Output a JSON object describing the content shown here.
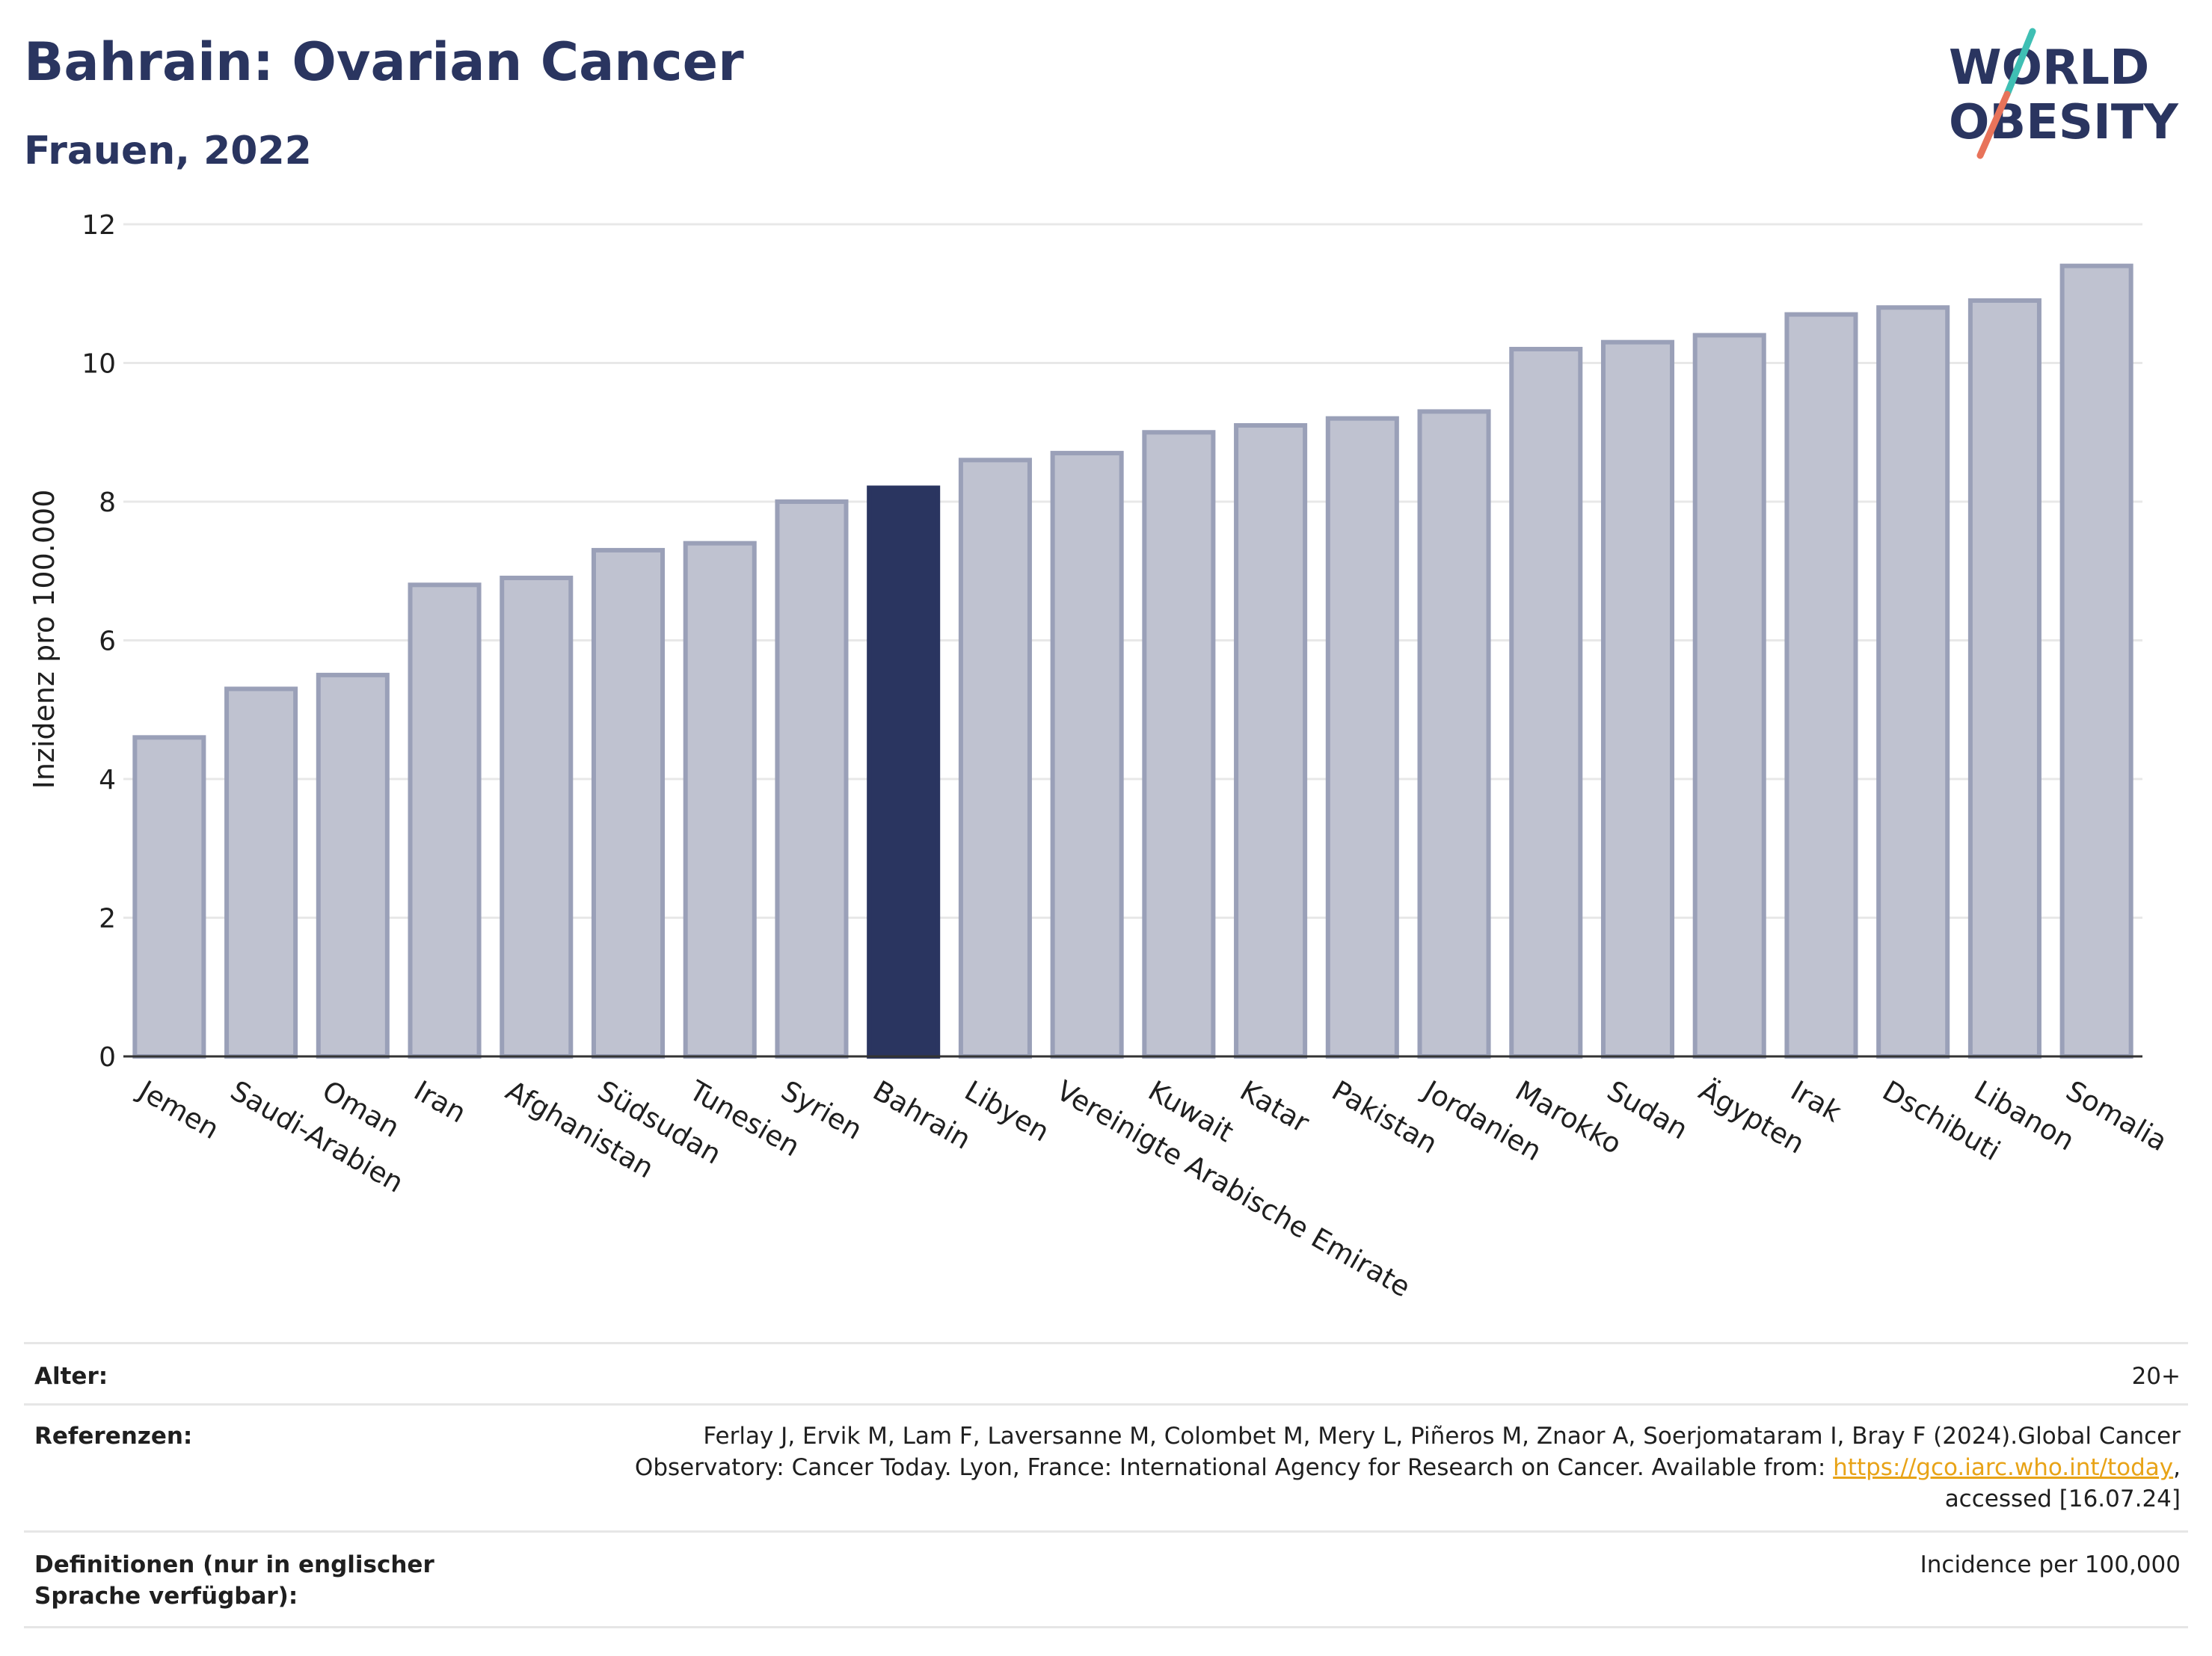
{
  "header": {
    "title": "Bahrain: Ovarian Cancer",
    "subtitle": "Frauen, 2022"
  },
  "logo": {
    "line1": "WORLD",
    "line2": "OBESITY",
    "slash_colors": [
      "#3fbfb4",
      "#e8735a"
    ],
    "text_color": "#2a3560"
  },
  "chart_data": {
    "type": "bar",
    "ylabel": "Inzidenz pro 100.000",
    "ylim": [
      0,
      12
    ],
    "yticks": [
      0,
      2,
      4,
      6,
      8,
      10,
      12
    ],
    "grid": true,
    "highlight": "Bahrain",
    "colors": {
      "bar": "#bfc2d0",
      "bar_edge": "#9aa0b8",
      "highlight": "#2a3560"
    },
    "categories": [
      "Jemen",
      "Saudi-Arabien",
      "Oman",
      "Iran",
      "Afghanistan",
      "Südsudan",
      "Tunesien",
      "Syrien",
      "Bahrain",
      "Libyen",
      "Vereinigte Arabische Emirate",
      "Kuwait",
      "Katar",
      "Pakistan",
      "Jordanien",
      "Marokko",
      "Sudan",
      "Ägypten",
      "Irak",
      "Dschibuti",
      "Libanon",
      "Somalia"
    ],
    "values": [
      4.6,
      5.3,
      5.5,
      6.8,
      6.9,
      7.3,
      7.4,
      8.0,
      8.2,
      8.6,
      8.7,
      9.0,
      9.1,
      9.2,
      9.3,
      10.2,
      10.3,
      10.4,
      10.7,
      10.8,
      10.9,
      11.4
    ]
  },
  "footer": {
    "age_label": "Alter:",
    "age_value": "20+",
    "ref_label": "Referenzen:",
    "ref_line1": "Ferlay J, Ervik M, Lam F, Laversanne M, Colombet M, Mery L, Piñeros M, Znaor A, Soerjomataram I, Bray F (2024).Global Cancer",
    "ref_line2_pre": "Observatory: Cancer Today. Lyon, France: International Agency for Research on Cancer. Available from: ",
    "ref_link": "https://gco.iarc.who.int/today",
    "ref_line2_post": ",",
    "ref_line3": "accessed [16.07.24]",
    "def_label": "Definitionen (nur in englischer Sprache verfügbar):",
    "def_value": "Incidence per 100,000"
  }
}
